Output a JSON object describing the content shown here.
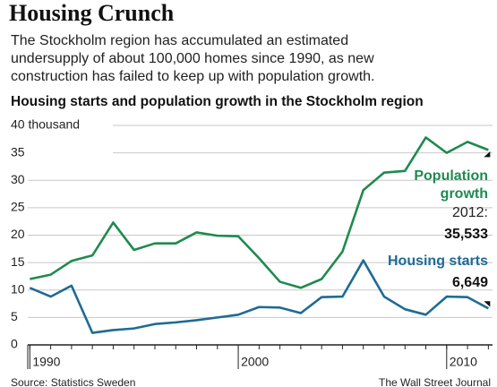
{
  "chart_data": {
    "type": "line",
    "title": "Housing Crunch",
    "subtitle": [
      "The Stockholm region has accumulated an estimated",
      "undersupply of about 100,000 homes since 1990, as new",
      "construction has failed to keep up with population growth."
    ],
    "chart_title": "Housing starts and population growth in the Stockholm region",
    "x": [
      1990,
      1991,
      1992,
      1993,
      1994,
      1995,
      1996,
      1997,
      1998,
      1999,
      2000,
      2001,
      2002,
      2003,
      2004,
      2005,
      2006,
      2007,
      2008,
      2009,
      2010,
      2011,
      2012
    ],
    "series": [
      {
        "name": [
          "Population",
          "growth"
        ],
        "color": "#1f8a4f",
        "values": [
          12.0,
          12.8,
          15.3,
          16.3,
          22.3,
          17.3,
          18.5,
          18.5,
          20.5,
          19.9,
          19.8,
          15.8,
          11.5,
          10.4,
          12.0,
          17.0,
          28.2,
          31.4,
          31.7,
          37.8,
          35.0,
          37.0,
          35.533
        ],
        "label_prefix": "2012:",
        "value_labels": [
          null,
          null,
          null,
          null,
          null,
          null,
          null,
          null,
          null,
          null,
          null,
          null,
          null,
          null,
          null,
          null,
          null,
          null,
          null,
          null,
          null,
          null,
          "35,533"
        ]
      },
      {
        "name": [
          "Housing starts"
        ],
        "color": "#1e6b94",
        "values": [
          10.4,
          8.8,
          10.8,
          2.2,
          2.7,
          3.0,
          3.8,
          4.1,
          4.5,
          5.0,
          5.5,
          6.9,
          6.8,
          5.8,
          8.7,
          8.8,
          15.4,
          8.8,
          6.5,
          5.5,
          8.8,
          8.7,
          6.649
        ],
        "value_labels": [
          null,
          null,
          null,
          null,
          null,
          null,
          null,
          null,
          null,
          null,
          null,
          null,
          null,
          null,
          null,
          null,
          null,
          null,
          null,
          null,
          null,
          null,
          "6,649"
        ]
      }
    ],
    "xlim": [
      1989.9,
      2012.2
    ],
    "xticks": [
      1990,
      2000,
      2010
    ],
    "ylim": [
      0,
      40
    ],
    "yticks": [
      0,
      5,
      10,
      15,
      20,
      25,
      30,
      {
        "value": 35,
        "label": "35"
      },
      {
        "value": 40,
        "label": "40 thousand"
      }
    ],
    "grid": true,
    "source": "Source: Statistics Sweden",
    "credit": "The Wall Street Journal"
  }
}
